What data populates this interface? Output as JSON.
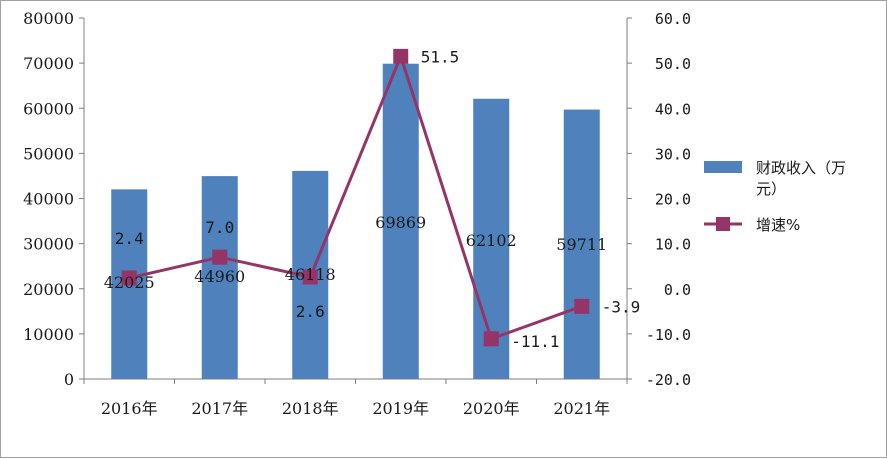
{
  "chart_data": {
    "type": "bar",
    "categories": [
      "2016年",
      "2017年",
      "2018年",
      "2019年",
      "2020年",
      "2021年"
    ],
    "series": [
      {
        "name": "财政收入（万元）",
        "type": "bar",
        "axis": "left",
        "color": "#4f81bd",
        "values": [
          42025,
          44960,
          46118,
          69869,
          62102,
          59711
        ],
        "labels": [
          "42025",
          "44960",
          "46118",
          "69869",
          "62102",
          "59711"
        ]
      },
      {
        "name": "增速%",
        "type": "line",
        "axis": "right",
        "color": "#953567",
        "values": [
          2.4,
          7.0,
          2.6,
          51.5,
          -11.1,
          -3.9
        ],
        "labels": [
          "2.4",
          "7.0",
          "2.6",
          "51.5",
          "-11.1",
          "-3.9"
        ]
      }
    ],
    "y_left": {
      "ylim": [
        0,
        80000
      ],
      "ticks": [
        "0",
        "10000",
        "20000",
        "30000",
        "40000",
        "50000",
        "60000",
        "70000",
        "80000"
      ]
    },
    "y_right": {
      "ylim": [
        -20,
        60
      ],
      "ticks": [
        "-20.0",
        "-10.0",
        "0.0",
        "10.0",
        "20.0",
        "30.0",
        "40.0",
        "50.0",
        "60.0"
      ]
    },
    "legend": {
      "position": "right",
      "entries": [
        {
          "line1": "财政收入（万",
          "line2": "元）"
        },
        {
          "line1": "增速%"
        }
      ]
    },
    "grid": false
  }
}
